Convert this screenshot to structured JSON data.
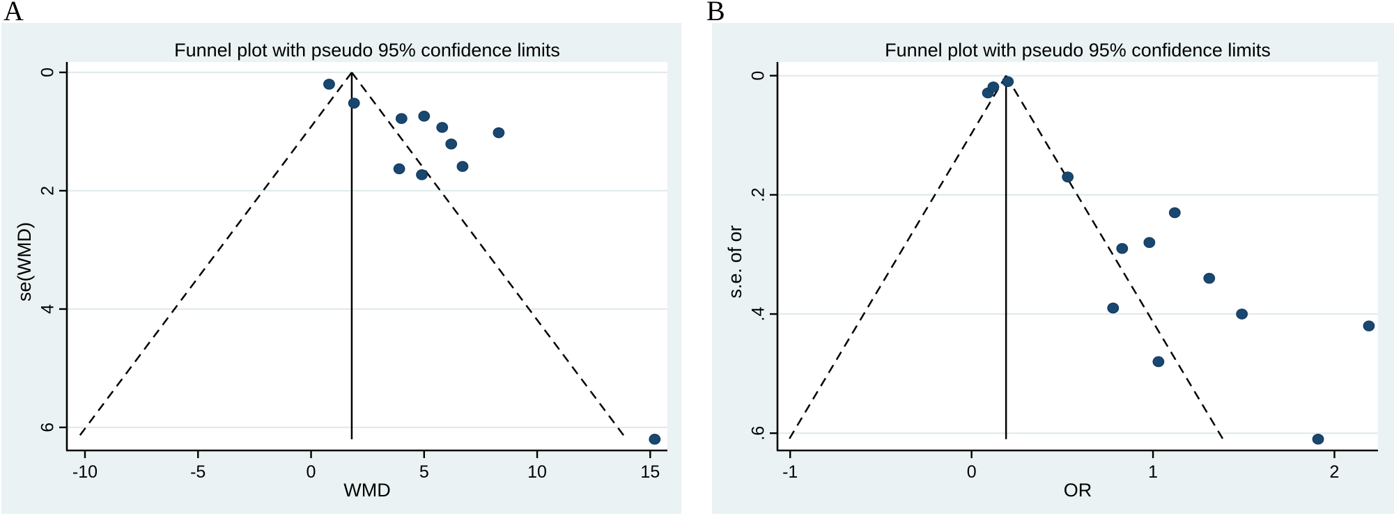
{
  "colors": {
    "panel_background": "#eaf2f3",
    "plot_background": "#ffffff",
    "gridline": "#e0eaec",
    "axis": "#000000",
    "marker_fill": "#1a476f",
    "marker_stroke": "#123a5e",
    "funnel_line": "#000000",
    "text": "#000000"
  },
  "chart_data": [
    {
      "type": "scatter",
      "subtype": "funnel-plot",
      "panel_label": "A",
      "title": "Funnel plot with pseudo 95% confidence limits",
      "xlabel": "WMD",
      "ylabel": "se(WMD)",
      "xlim": [
        -10.8,
        15.76
      ],
      "ylim": [
        -0.176,
        6.39
      ],
      "y_axis_inverted": true,
      "grid": "horizontal",
      "legend": "none",
      "x_ticks": [
        -10,
        -5,
        0,
        5,
        10,
        15
      ],
      "x_tick_labels": [
        "-10",
        "-5",
        "0",
        "5",
        "10",
        "15"
      ],
      "y_ticks": [
        0,
        2,
        4,
        6
      ],
      "y_tick_labels": [
        "0",
        "2",
        "4",
        "6"
      ],
      "center_line_x": 1.8,
      "ci_multiplier": 1.96,
      "funnel_se_max": 6.2,
      "points": [
        [
          0.8,
          0.2
        ],
        [
          1.9,
          0.52
        ],
        [
          4.0,
          0.78
        ],
        [
          5.0,
          0.74
        ],
        [
          5.8,
          0.93
        ],
        [
          8.3,
          1.02
        ],
        [
          6.2,
          1.21
        ],
        [
          3.9,
          1.63
        ],
        [
          4.9,
          1.73
        ],
        [
          6.7,
          1.59
        ],
        [
          15.2,
          6.2
        ]
      ]
    },
    {
      "type": "scatter",
      "subtype": "funnel-plot",
      "panel_label": "B",
      "title": "Funnel plot with pseudo 95% confidence limits",
      "xlabel": "OR",
      "ylabel": "s.e. of or",
      "xlim": [
        -1.07,
        2.24
      ],
      "ylim": [
        -0.023,
        0.629
      ],
      "y_axis_inverted": true,
      "grid": "horizontal",
      "legend": "none",
      "x_ticks": [
        -1,
        0,
        1,
        2
      ],
      "x_tick_labels": [
        "-1",
        "0",
        "1",
        "2"
      ],
      "y_ticks": [
        0,
        0.2,
        0.4,
        0.6
      ],
      "y_tick_labels": [
        "0",
        ".2",
        ".4",
        ".6"
      ],
      "center_line_x": 0.19,
      "ci_multiplier": 1.96,
      "funnel_se_max": 0.61,
      "points": [
        [
          0.09,
          0.029
        ],
        [
          0.12,
          0.019
        ],
        [
          0.2,
          0.01
        ],
        [
          0.53,
          0.17
        ],
        [
          0.83,
          0.29
        ],
        [
          0.98,
          0.28
        ],
        [
          1.12,
          0.23
        ],
        [
          1.31,
          0.34
        ],
        [
          0.78,
          0.39
        ],
        [
          1.49,
          0.4
        ],
        [
          2.19,
          0.42
        ],
        [
          1.03,
          0.48
        ],
        [
          1.91,
          0.61
        ]
      ]
    }
  ]
}
